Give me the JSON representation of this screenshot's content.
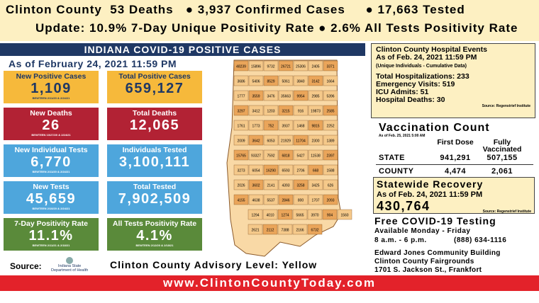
{
  "header": {
    "line1": [
      "Clinton County",
      "53 Deaths",
      "● 3,937 Confirmed Cases",
      "● 17,663 Tested"
    ],
    "line2": "Update: 10.9% 7-Day Unique Positivity Rate ● 2.6% All Tests Positivity Rate"
  },
  "banner": "INDIANA COVID-19 POSITIVE CASES",
  "as_of": "As of February 24, 2021 11:59 PM",
  "tiles": [
    {
      "label": "New Positive Cases",
      "value": "1,109",
      "note": "BEWTEEN 2/11/20 & 2/24/21"
    },
    {
      "label": "Total Positive Cases",
      "value": "659,127"
    },
    {
      "label": "New Deaths",
      "value": "26",
      "note": "BEWTEEN 10/27/20 & 2/24/21"
    },
    {
      "label": "Total Deaths",
      "value": "12,065"
    },
    {
      "label": "New Individual Tests",
      "value": "6,770",
      "note": "BEWTEEN 2/11/20 & 2/24/21"
    },
    {
      "label": "Individuals Tested",
      "value": "3,100,111"
    },
    {
      "label": "New Tests",
      "value": "45,659",
      "note": "BEWTEEN 2/10/20 & 2/24/21"
    },
    {
      "label": "Total Tested",
      "value": "7,902,509"
    },
    {
      "label": "7-Day Positivity Rate",
      "value": "11.1%",
      "note": "BEWTEEN 2/11/21 & 2/18/21"
    },
    {
      "label": "All Tests Positivity Rate",
      "value": "4.1%",
      "note": "BEWTEEN 2/12/20 & 2/18/21"
    }
  ],
  "source": "Source:",
  "logo": [
    "Indiana State",
    "Department of Health"
  ],
  "advisory": "Clinton County Advisory Level: Yellow",
  "footer": "www.ClintonCountyToday.com",
  "map": {
    "counties": [
      "48239",
      "15896",
      "9732",
      "26721",
      "25306",
      "2405",
      "3371",
      "3686",
      "5406",
      "8529",
      "5061",
      "3840",
      "3142",
      "1664",
      "1777",
      "3559",
      "3476",
      "35663",
      "9954",
      "2985",
      "5396",
      "3297",
      "3412",
      "1203",
      "3215",
      "916",
      "19873",
      "2585",
      "1761",
      "1773",
      "752",
      "3937",
      "1468",
      "9815",
      "2252",
      "2009",
      "3642",
      "6053",
      "21929",
      "11704",
      "2300",
      "1389",
      "15765",
      "93327",
      "7592",
      "6818",
      "5427",
      "11538",
      "2397",
      "3273",
      "6054",
      "16290",
      "6593",
      "2706",
      "668",
      "1588",
      "2026",
      "3602",
      "2141",
      "4393",
      "3258",
      "3425",
      "626",
      "4155",
      "4638",
      "5537",
      "2846",
      "800",
      "1707",
      "2093",
      "1294",
      "4010",
      "1274",
      "5665",
      "3970",
      "904",
      "1560",
      "2621",
      "2112",
      "7388",
      "2166",
      "6732"
    ]
  },
  "hospital": {
    "title": [
      "Clinton County Hospital Events",
      "As of Feb. 24, 2021 11:59 PM"
    ],
    "sub": "(Unique Individuals - Cumulative Data)",
    "items": [
      "Total Hospitalizations: 233",
      "Emergency Visits: 519",
      "ICU Admits: 51",
      "Hospital Deaths: 30"
    ],
    "source": "Source: Regenstrief Institute"
  },
  "vaccination": {
    "title": "Vaccination Count",
    "as_of": "As of Feb. 25, 2021 5:00 AM",
    "columns": [
      "First Dose",
      "Fully Vaccinated"
    ],
    "rows": [
      [
        "STATE",
        "941,291",
        "507,155"
      ],
      [
        "COUNTY",
        "4,474",
        "2,061"
      ]
    ]
  },
  "recovery": {
    "title": "Statewide Recovery",
    "as_of": "As of Feb. 24, 2021 11:59 PM",
    "value": "430,764",
    "source": "Source: Regenstrief Institute"
  },
  "testing": {
    "title": "Free COVID-19 Testing",
    "lines": [
      "Available Monday - Friday",
      "8 a.m. - 6 p.m.",
      "(888) 634-1116"
    ],
    "location": [
      "Edward Jones Community Building",
      "Clinton County Fairgrounds",
      "1701 S. Jackson St., Frankfort"
    ]
  }
}
